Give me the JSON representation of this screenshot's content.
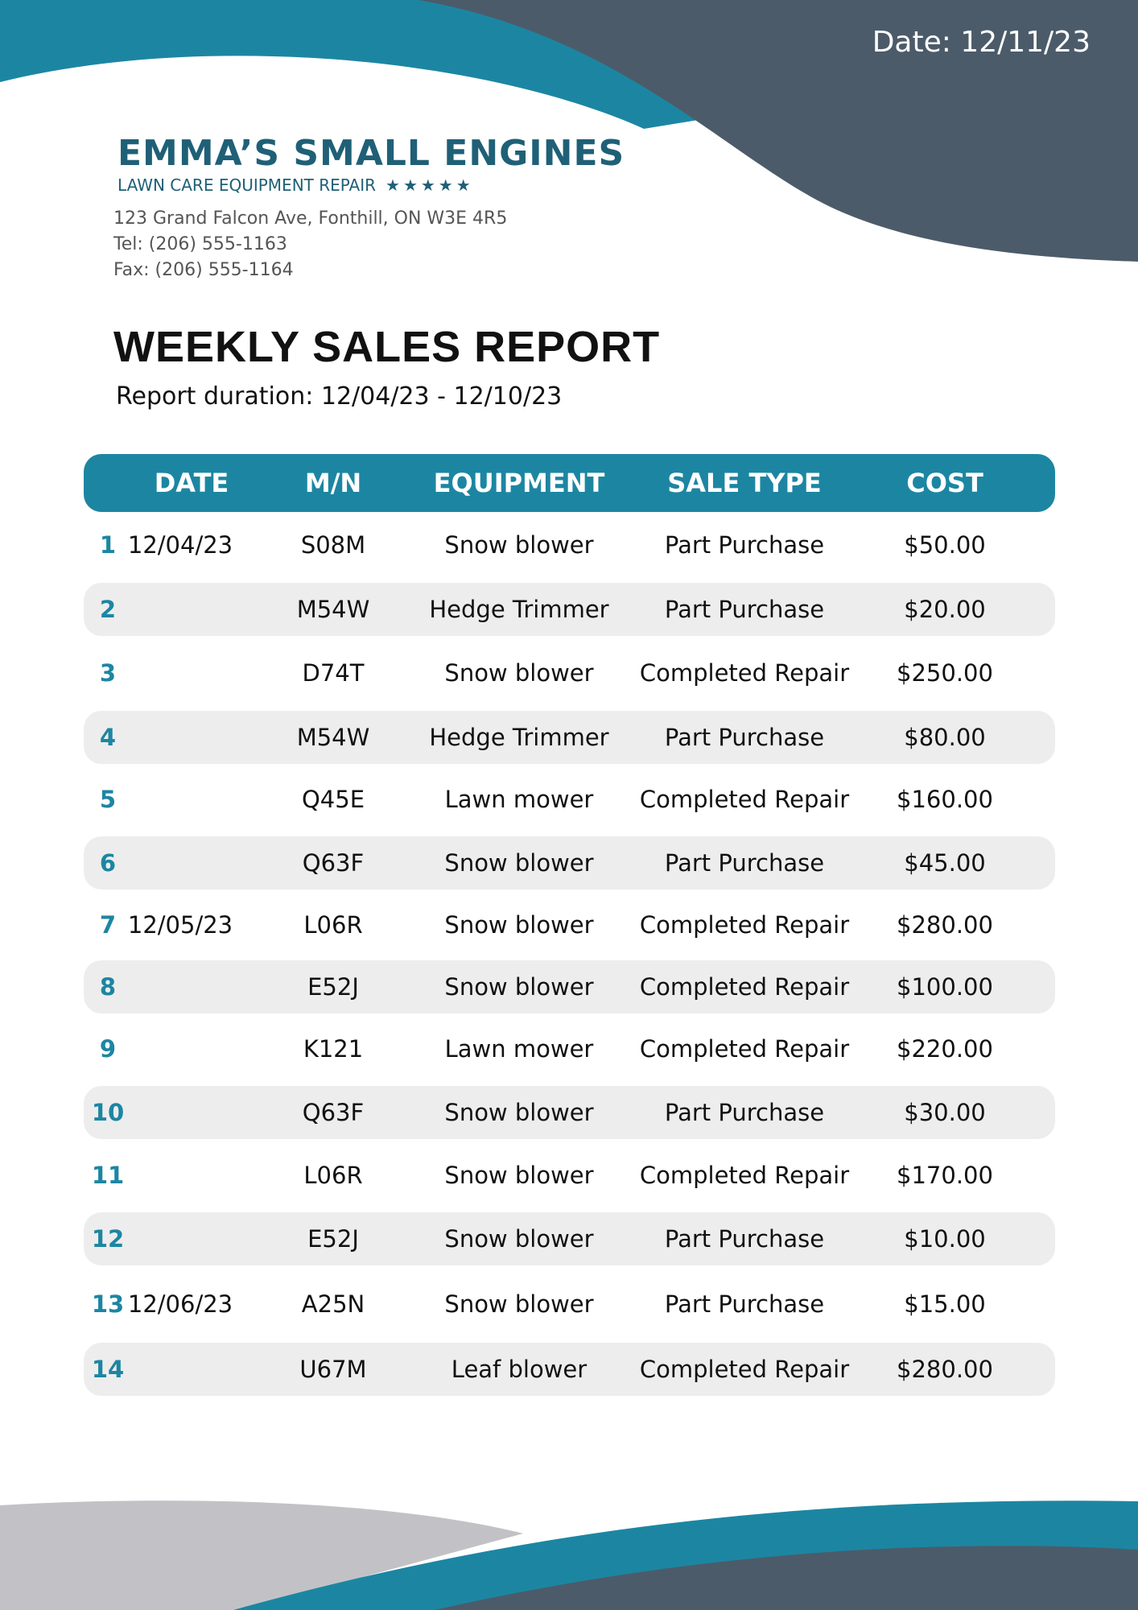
{
  "header": {
    "date_label": "Date: 12/11/23"
  },
  "company": {
    "name": "EMMA’S SMALL ENGINES",
    "tagline": "LAWN CARE EQUIPMENT REPAIR",
    "stars": "★★★★★",
    "address": "123 Grand Falcon Ave, Fonthill, ON W3E 4R5",
    "tel": "Tel: (206) 555-1163",
    "fax": "Fax: (206) 555-1164"
  },
  "report": {
    "title": "WEEKLY SALES REPORT",
    "duration": "Report duration: 12/04/23 - 12/10/23"
  },
  "table": {
    "headers": [
      "DATE",
      "M/N",
      "EQUIPMENT",
      "SALE TYPE",
      "COST"
    ],
    "rows": [
      {
        "num": "1",
        "date": "12/04/23",
        "mn": "S08M",
        "equipment": "Snow blower",
        "sale_type": "Part Purchase",
        "cost": "$50.00"
      },
      {
        "num": "2",
        "date": "",
        "mn": "M54W",
        "equipment": "Hedge Trimmer",
        "sale_type": "Part Purchase",
        "cost": "$20.00"
      },
      {
        "num": "3",
        "date": "",
        "mn": "D74T",
        "equipment": "Snow blower",
        "sale_type": "Completed Repair",
        "cost": "$250.00"
      },
      {
        "num": "4",
        "date": "",
        "mn": "M54W",
        "equipment": "Hedge Trimmer",
        "sale_type": "Part Purchase",
        "cost": "$80.00"
      },
      {
        "num": "5",
        "date": "",
        "mn": "Q45E",
        "equipment": "Lawn mower",
        "sale_type": "Completed Repair",
        "cost": "$160.00"
      },
      {
        "num": "6",
        "date": "",
        "mn": "Q63F",
        "equipment": "Snow blower",
        "sale_type": "Part Purchase",
        "cost": "$45.00"
      },
      {
        "num": "7",
        "date": "12/05/23",
        "mn": "L06R",
        "equipment": "Snow blower",
        "sale_type": "Completed Repair",
        "cost": "$280.00"
      },
      {
        "num": "8",
        "date": "",
        "mn": "E52J",
        "equipment": "Snow blower",
        "sale_type": "Completed Repair",
        "cost": "$100.00"
      },
      {
        "num": "9",
        "date": "",
        "mn": "K121",
        "equipment": "Lawn mower",
        "sale_type": "Completed Repair",
        "cost": "$220.00"
      },
      {
        "num": "10",
        "date": "",
        "mn": "Q63F",
        "equipment": "Snow blower",
        "sale_type": "Part Purchase",
        "cost": "$30.00"
      },
      {
        "num": "11",
        "date": "",
        "mn": "L06R",
        "equipment": "Snow blower",
        "sale_type": "Completed Repair",
        "cost": "$170.00"
      },
      {
        "num": "12",
        "date": "",
        "mn": "E52J",
        "equipment": "Snow blower",
        "sale_type": "Part Purchase",
        "cost": "$10.00"
      },
      {
        "num": "13",
        "date": "12/06/23",
        "mn": "A25N",
        "equipment": "Snow blower",
        "sale_type": "Part Purchase",
        "cost": "$15.00"
      },
      {
        "num": "14",
        "date": "",
        "mn": "U67M",
        "equipment": "Leaf blower",
        "sale_type": "Completed Repair",
        "cost": "$280.00"
      }
    ]
  },
  "colors": {
    "teal": "#1c86a2",
    "slate": "#4c5b69",
    "gray_wave": "#c2c2c6",
    "row_alt": "#ededed",
    "logo": "#1f6077"
  }
}
